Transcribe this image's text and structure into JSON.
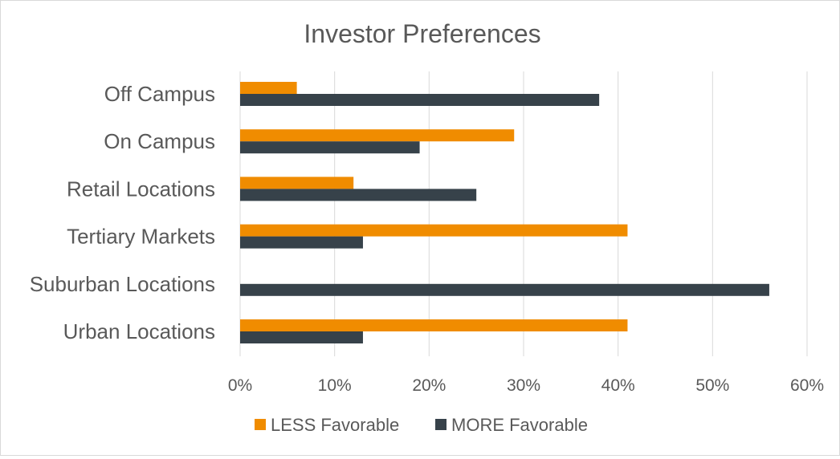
{
  "chart_data": {
    "type": "bar",
    "orientation": "horizontal",
    "title": "Investor Preferences",
    "categories": [
      "Off Campus",
      "On Campus",
      "Retail Locations",
      "Tertiary Markets",
      "Suburban Locations",
      "Urban Locations"
    ],
    "series": [
      {
        "name": "LESS Favorable",
        "color": "#F08C00",
        "values": [
          6,
          29,
          12,
          41,
          0,
          41
        ]
      },
      {
        "name": "MORE Favorable",
        "color": "#37424A",
        "values": [
          38,
          19,
          25,
          13,
          56,
          13
        ]
      }
    ],
    "xlim": [
      0,
      60
    ],
    "x_ticks": [
      "0%",
      "10%",
      "20%",
      "30%",
      "40%",
      "50%",
      "60%"
    ],
    "grid": true,
    "legend_position": "bottom"
  }
}
